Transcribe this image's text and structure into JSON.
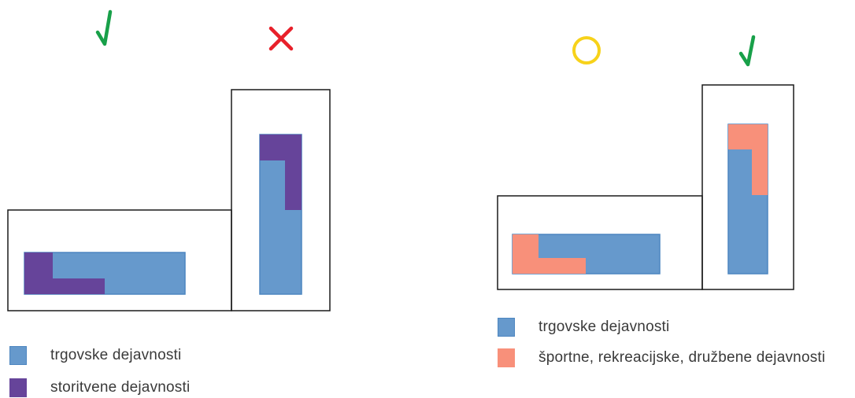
{
  "colors": {
    "commercial": "#6699CC",
    "commercial_border": "#4D86C0",
    "service": "#66449A",
    "sport": "#F8907A",
    "check": "#18A049",
    "cross": "#E8202A",
    "circle": "#F7D21A",
    "outline": "#1a1a1a"
  },
  "diagram_left": {
    "marks": [
      {
        "icon": "check-icon",
        "meaning": "allowed"
      },
      {
        "icon": "cross-icon",
        "meaning": "not-allowed"
      }
    ],
    "legend": [
      {
        "label": "trgovske dejavnosti",
        "color": "#6699CC"
      },
      {
        "label": "storitvene dejavnosti",
        "color": "#66449A"
      }
    ]
  },
  "diagram_right": {
    "marks": [
      {
        "icon": "circle-icon",
        "meaning": "conditional"
      },
      {
        "icon": "check-icon",
        "meaning": "allowed"
      }
    ],
    "legend": [
      {
        "label": "trgovske dejavnosti",
        "color": "#6699CC"
      },
      {
        "label": "športne, rekreacijske, družbene dejavnosti",
        "color": "#F8907A"
      }
    ]
  }
}
